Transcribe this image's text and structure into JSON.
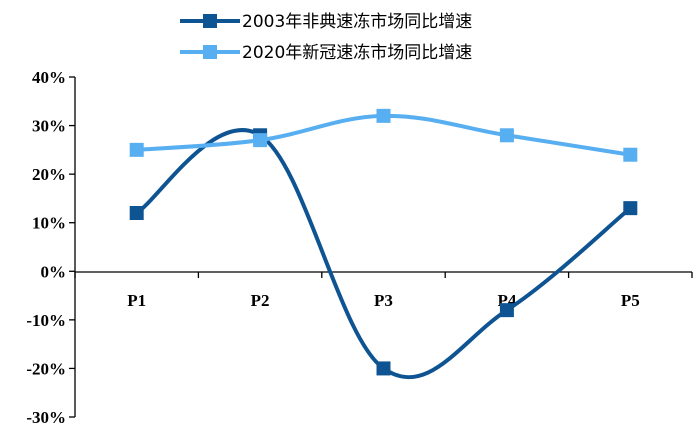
{
  "chart_data": {
    "type": "line",
    "categories": [
      "P1",
      "P2",
      "P3",
      "P4",
      "P5"
    ],
    "series": [
      {
        "name": "2003年非典速冻市场同比增速",
        "values": [
          12,
          28,
          -20,
          -8,
          13
        ],
        "color": "#0f5492",
        "marker": "square",
        "smooth": true
      },
      {
        "name": "2020年新冠速冻市场同比增速",
        "values": [
          25,
          27,
          32,
          28,
          24
        ],
        "color": "#57aef0",
        "marker": "square",
        "smooth": true
      }
    ],
    "ylim": [
      -30,
      40
    ],
    "yticks": [
      40,
      30,
      20,
      10,
      0,
      -10,
      -20,
      -30
    ],
    "ytick_labels": [
      "40%",
      "30%",
      "20%",
      "10%",
      "0%",
      "-10%",
      "-20%",
      "-30%"
    ],
    "grid": false,
    "legend_position": "top-center"
  }
}
